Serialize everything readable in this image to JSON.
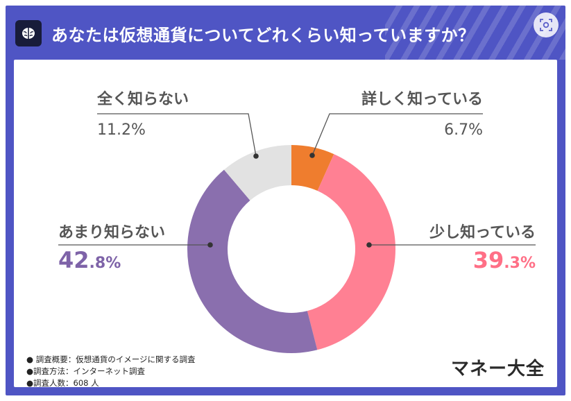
{
  "header": {
    "title": "あなたは仮想通貨についてどれくらい知っていますか？",
    "icon": "brain-icon",
    "lens_icon": "lens-icon"
  },
  "colors": {
    "frame": "#4f55c4",
    "accent_purple": "#7e63a8",
    "accent_pink": "#f0708a"
  },
  "chart_data": {
    "type": "pie",
    "donut": true,
    "categories": [
      "詳しく知っている",
      "少し知っている",
      "あまり知らない",
      "全く知らない"
    ],
    "values": [
      6.7,
      39.3,
      42.8,
      11.2
    ],
    "value_labels": [
      "6.7%",
      "39.3%",
      "42.8%",
      "11.2%"
    ],
    "colors": [
      "#ef7d2e",
      "#ff8093",
      "#8a6fae",
      "#e2e2e2"
    ],
    "label_colors": [
      "#555555",
      "#ff6f86",
      "#7e63a8",
      "#555555"
    ],
    "highlight": [
      false,
      true,
      true,
      false
    ]
  },
  "footnotes": [
    "● 調査概要：仮想通貨のイメージに関する調査",
    "●調査方法：インターネット調査",
    "●調査人数：608 人"
  ],
  "logo": "マネー大全"
}
